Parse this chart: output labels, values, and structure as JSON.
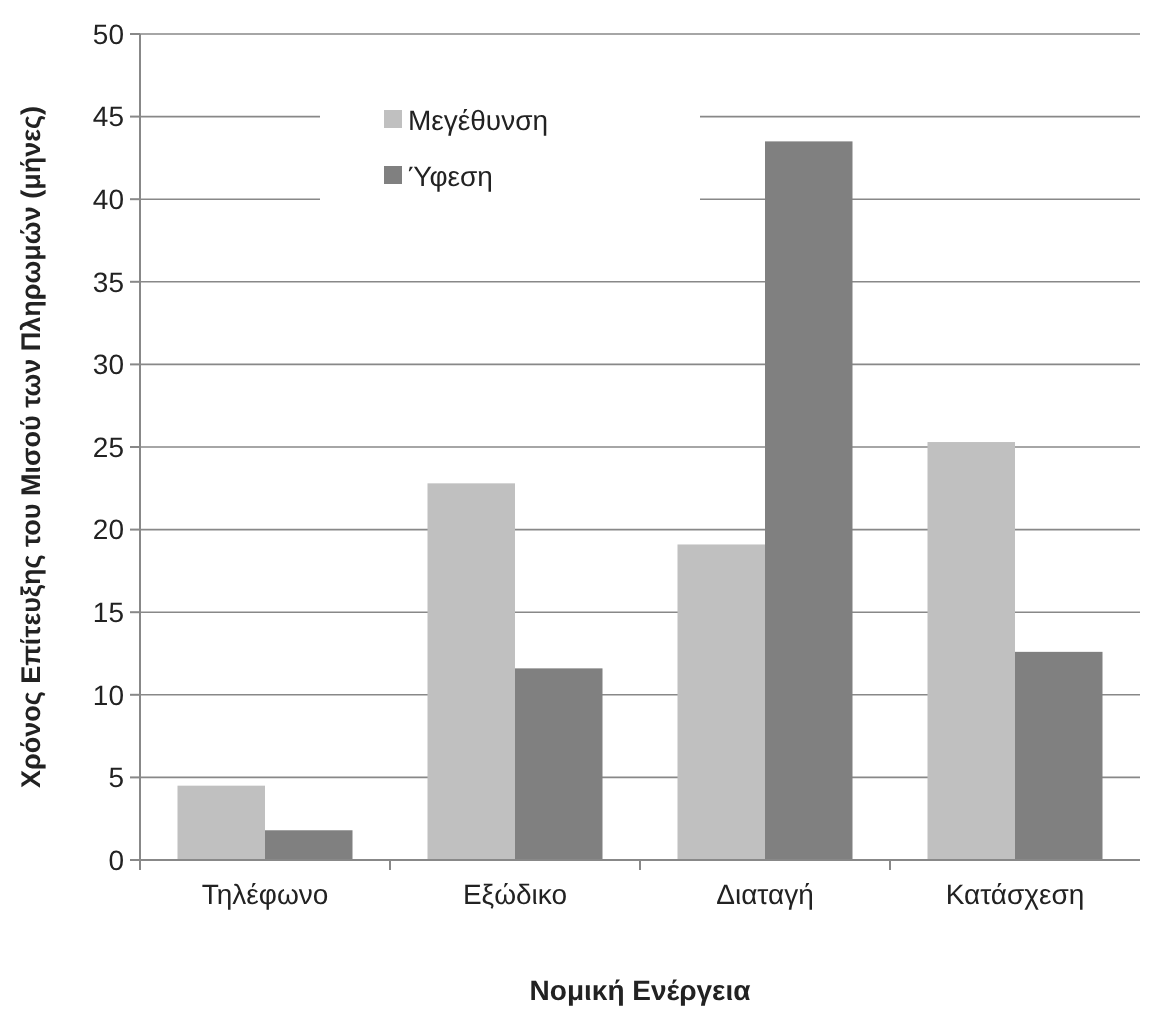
{
  "chart_data": {
    "type": "bar",
    "xlabel": "Νομική Ενέργεια",
    "ylabel": "Χρόνος Επίτευξης του Μισού των Πληρωμών (μήνες)",
    "categories": [
      "Τηλέφωνο",
      "Εξώδικο",
      "Διαταγή",
      "Κατάσχεση"
    ],
    "series": [
      {
        "name": "Μεγέθυνση",
        "color": "#c0c0c0",
        "values": [
          4.5,
          22.8,
          19.1,
          25.3
        ]
      },
      {
        "name": "Ύφεση",
        "color": "#808080",
        "values": [
          1.8,
          11.6,
          43.5,
          12.6
        ]
      }
    ],
    "ylim": [
      0,
      50
    ],
    "yticks": [
      0,
      5,
      10,
      15,
      20,
      25,
      30,
      35,
      40,
      45,
      50
    ],
    "grid": "y",
    "legend": "top"
  }
}
